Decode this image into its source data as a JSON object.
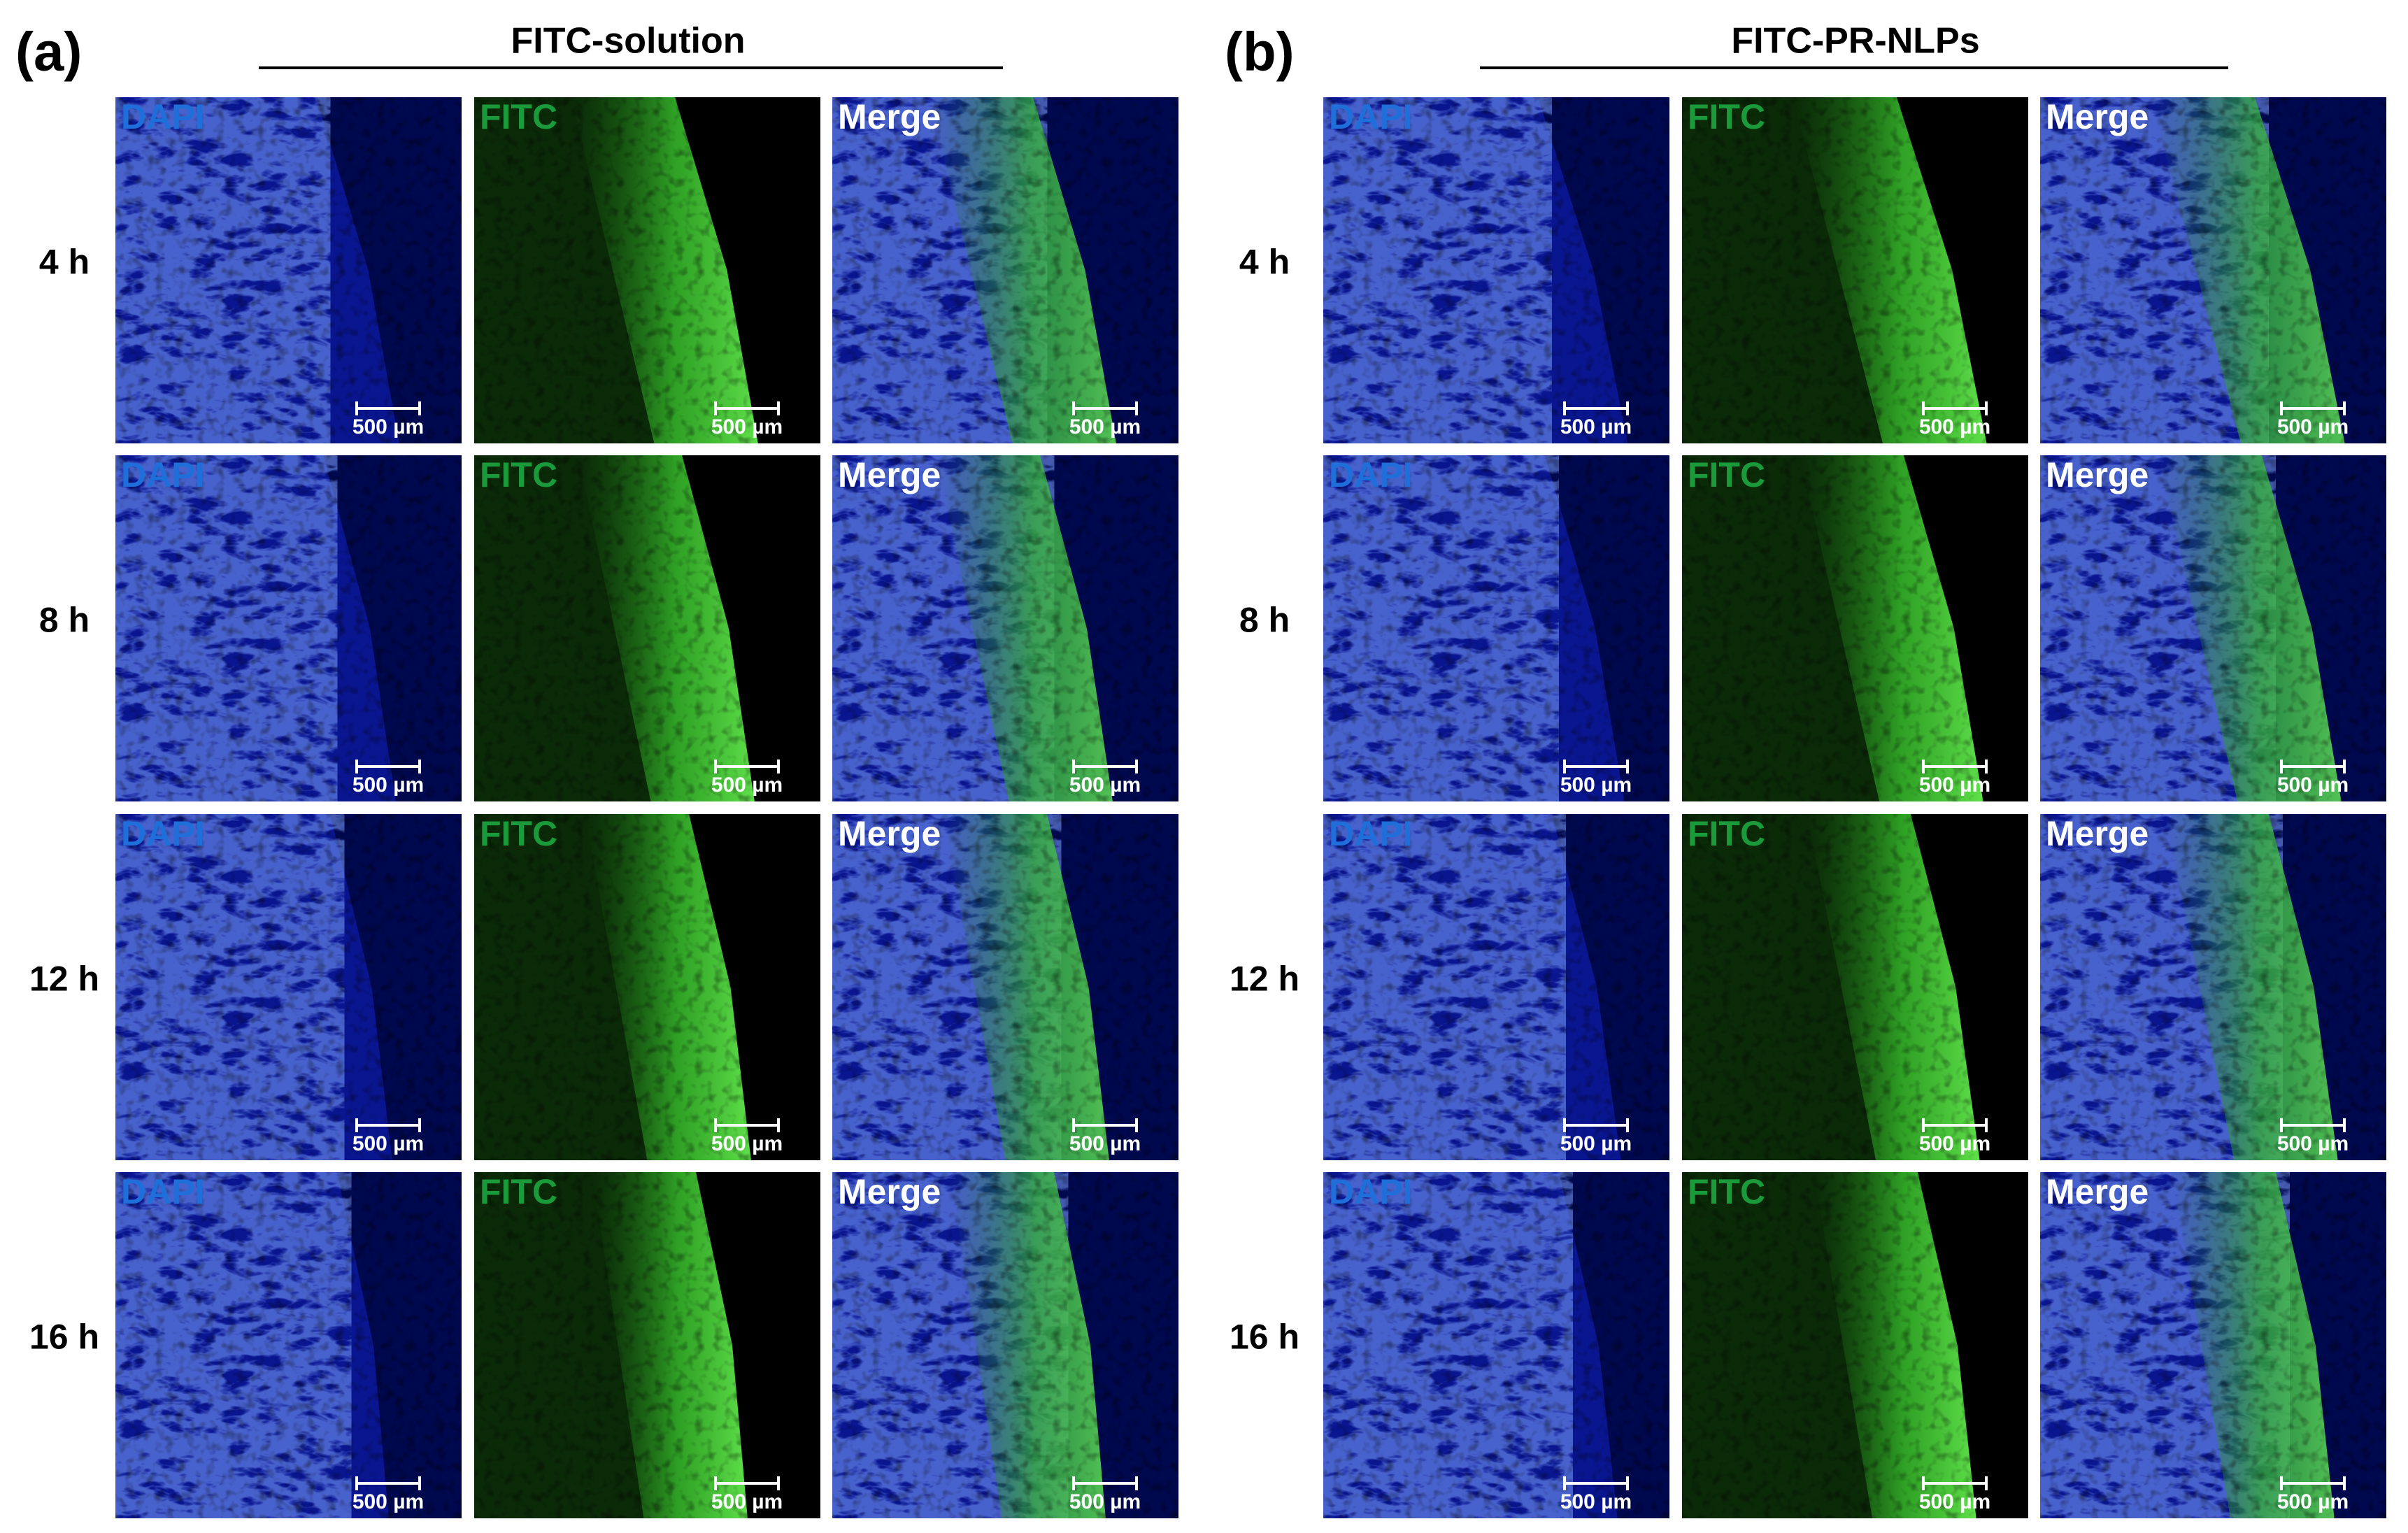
{
  "panels": [
    {
      "label": "(a)",
      "title": "FITC-solution",
      "channels": [
        "DAPI",
        "FITC",
        "Merge"
      ],
      "rows": [
        "4 h",
        "8 h",
        "12 h",
        "16 h"
      ]
    },
    {
      "label": "(b)",
      "title": "FITC-PR-NLPs",
      "channels": [
        "DAPI",
        "FITC",
        "Merge"
      ],
      "rows": [
        "4 h",
        "8 h",
        "12 h",
        "16 h"
      ]
    }
  ],
  "scale_bar_label": "500 µm"
}
